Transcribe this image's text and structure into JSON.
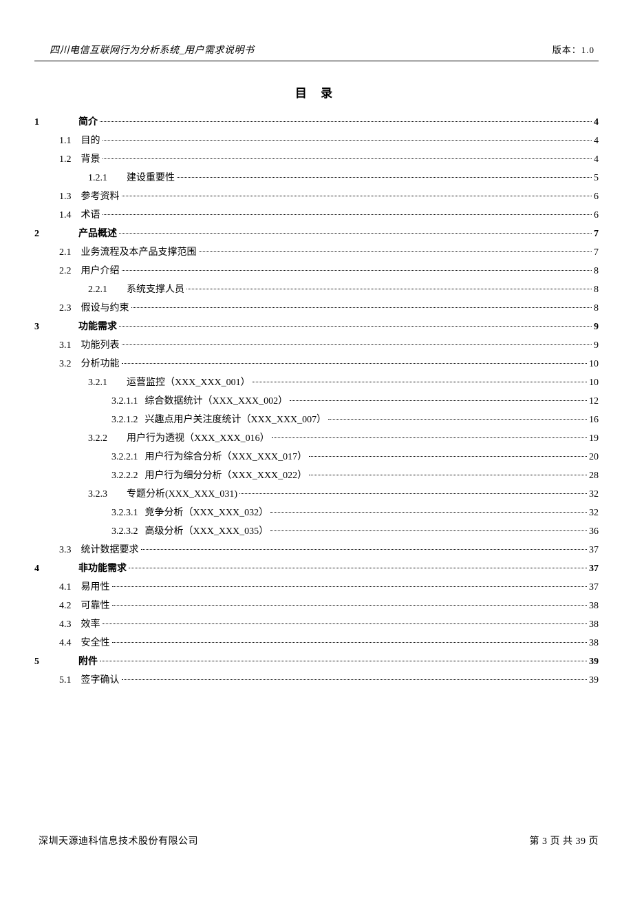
{
  "header": {
    "left": "四川电信互联网行为分析系统_用户需求说明书",
    "right": "版本：1.0"
  },
  "toc_title": "目 录",
  "toc": [
    {
      "num": "1",
      "text": "简介",
      "page": "4",
      "level": 0,
      "bold": true
    },
    {
      "num": "1.1",
      "text": "目的",
      "page": "4",
      "level": 1,
      "bold": false
    },
    {
      "num": "1.2",
      "text": "背景",
      "page": "4",
      "level": 1,
      "bold": false
    },
    {
      "num": "1.2.1",
      "text": "建设重要性",
      "page": "5",
      "level": 2,
      "bold": false
    },
    {
      "num": "1.3",
      "text": "参考资料",
      "page": "6",
      "level": 1,
      "bold": false
    },
    {
      "num": "1.4",
      "text": "术语",
      "page": "6",
      "level": 1,
      "bold": false
    },
    {
      "num": "2",
      "text": "产品概述",
      "page": "7",
      "level": 0,
      "bold": true
    },
    {
      "num": "2.1",
      "text": "业务流程及本产品支撑范围",
      "page": "7",
      "level": 1,
      "bold": false
    },
    {
      "num": "2.2",
      "text": "用户介绍",
      "page": "8",
      "level": 1,
      "bold": false
    },
    {
      "num": "2.2.1",
      "text": "系统支撑人员",
      "page": "8",
      "level": 2,
      "bold": false
    },
    {
      "num": "2.3",
      "text": "假设与约束",
      "page": "8",
      "level": 1,
      "bold": false
    },
    {
      "num": "3",
      "text": "功能需求",
      "page": "9",
      "level": 0,
      "bold": true
    },
    {
      "num": "3.1",
      "text": "功能列表",
      "page": "9",
      "level": 1,
      "bold": false
    },
    {
      "num": "3.2",
      "text": "分析功能",
      "page": "10",
      "level": 1,
      "bold": false
    },
    {
      "num": "3.2.1",
      "text": "运营监控（XXX_XXX_001）",
      "page": "10",
      "level": 2,
      "bold": false
    },
    {
      "num": "3.2.1.1",
      "text": "综合数据统计（XXX_XXX_002）",
      "page": "12",
      "level": 3,
      "bold": false
    },
    {
      "num": "3.2.1.2",
      "text": "兴趣点用户关注度统计（XXX_XXX_007）",
      "page": "16",
      "level": 3,
      "bold": false
    },
    {
      "num": "3.2.2",
      "text": "用户行为透视（XXX_XXX_016）",
      "page": "19",
      "level": 2,
      "bold": false
    },
    {
      "num": "3.2.2.1",
      "text": "用户行为综合分析（XXX_XXX_017）",
      "page": "20",
      "level": 3,
      "bold": false
    },
    {
      "num": "3.2.2.2",
      "text": "用户行为细分分析（XXX_XXX_022）",
      "page": "28",
      "level": 3,
      "bold": false
    },
    {
      "num": "3.2.3",
      "text": "专题分析(XXX_XXX_031)",
      "page": "32",
      "level": 2,
      "bold": false
    },
    {
      "num": "3.2.3.1",
      "text": "竞争分析（XXX_XXX_032）",
      "page": "32",
      "level": 3,
      "bold": false
    },
    {
      "num": "3.2.3.2",
      "text": "高级分析（XXX_XXX_035）",
      "page": "36",
      "level": 3,
      "bold": false
    },
    {
      "num": "3.3",
      "text": "统计数据要求",
      "page": "37",
      "level": 1,
      "bold": false
    },
    {
      "num": "4",
      "text": "非功能需求",
      "page": "37",
      "level": 0,
      "bold": true
    },
    {
      "num": "4.1",
      "text": "易用性",
      "page": "37",
      "level": 1,
      "bold": false
    },
    {
      "num": "4.2",
      "text": "可靠性",
      "page": "38",
      "level": 1,
      "bold": false
    },
    {
      "num": "4.3",
      "text": "效率",
      "page": "38",
      "level": 1,
      "bold": false
    },
    {
      "num": "4.4",
      "text": "安全性",
      "page": "38",
      "level": 1,
      "bold": false
    },
    {
      "num": "5",
      "text": "附件",
      "page": "39",
      "level": 0,
      "bold": true
    },
    {
      "num": "5.1",
      "text": "签字确认",
      "page": "39",
      "level": 1,
      "bold": false
    }
  ],
  "footer": {
    "left": "深圳天源迪科信息技术股份有限公司",
    "right": "第 3 页 共 39 页"
  }
}
